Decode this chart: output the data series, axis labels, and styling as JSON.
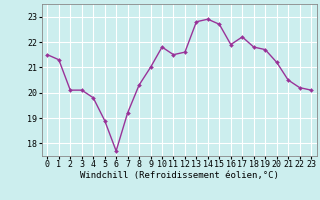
{
  "x": [
    0,
    1,
    2,
    3,
    4,
    5,
    6,
    7,
    8,
    9,
    10,
    11,
    12,
    13,
    14,
    15,
    16,
    17,
    18,
    19,
    20,
    21,
    22,
    23
  ],
  "y": [
    21.5,
    21.3,
    20.1,
    20.1,
    19.8,
    18.9,
    17.7,
    19.2,
    20.3,
    21.0,
    21.8,
    21.5,
    21.6,
    22.8,
    22.9,
    22.7,
    21.9,
    22.2,
    21.8,
    21.7,
    21.2,
    20.5,
    20.2,
    20.1
  ],
  "line_color": "#993399",
  "marker": "D",
  "marker_size": 2.0,
  "bg_color": "#cceeee",
  "grid_color": "#ffffff",
  "xlabel": "Windchill (Refroidissement éolien,°C)",
  "ylim": [
    17.5,
    23.5
  ],
  "xlim": [
    -0.5,
    23.5
  ],
  "yticks": [
    18,
    19,
    20,
    21,
    22,
    23
  ],
  "xticks": [
    0,
    1,
    2,
    3,
    4,
    5,
    6,
    7,
    8,
    9,
    10,
    11,
    12,
    13,
    14,
    15,
    16,
    17,
    18,
    19,
    20,
    21,
    22,
    23
  ],
  "xlabel_fontsize": 6.5,
  "tick_fontsize": 6.0,
  "line_width": 1.0
}
